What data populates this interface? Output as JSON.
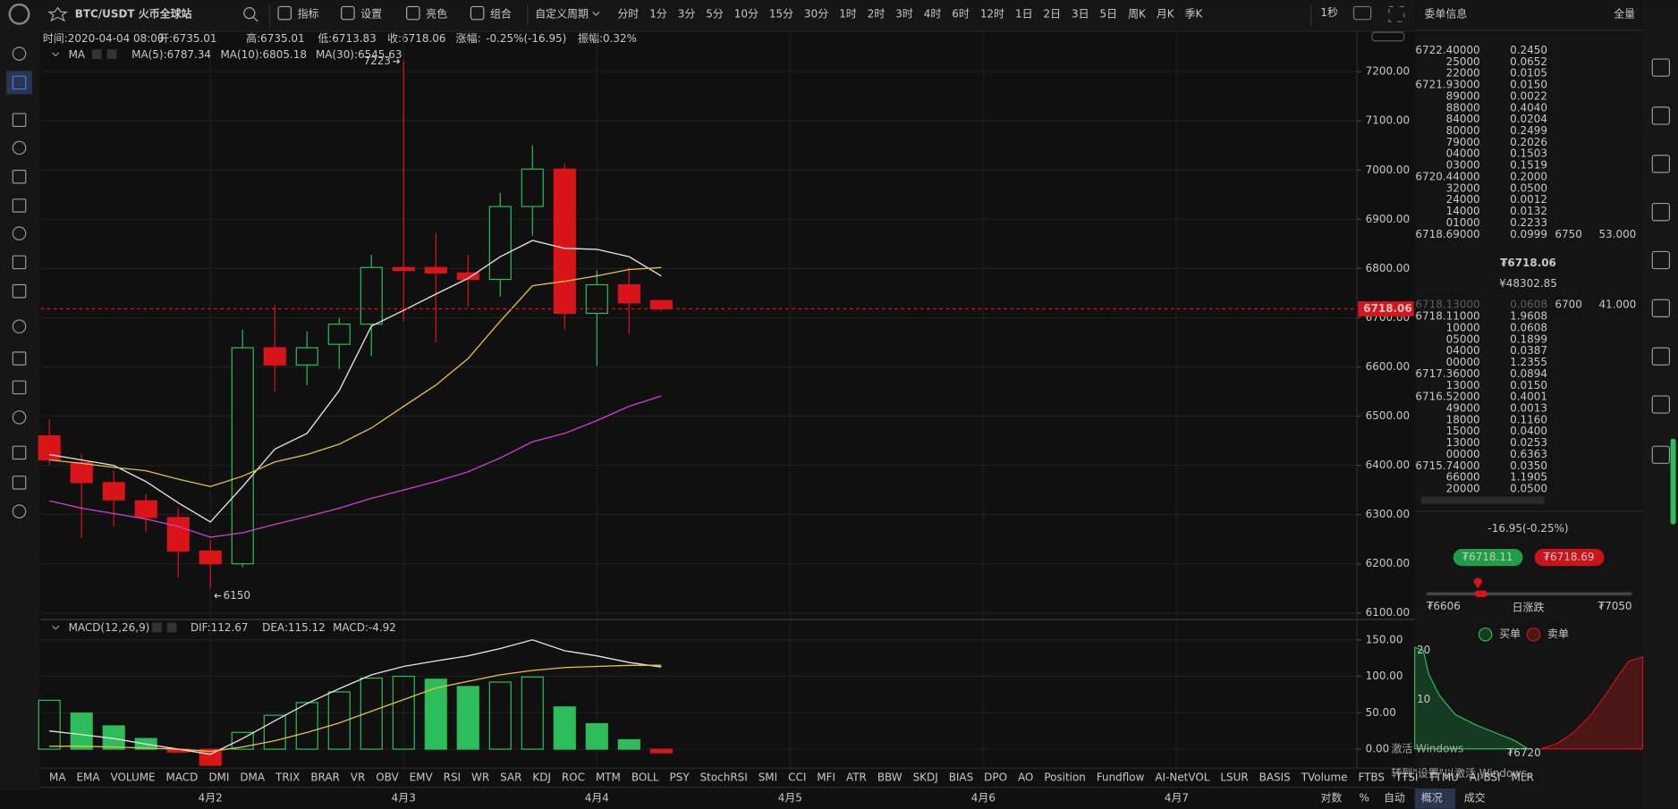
{
  "toolbar": {
    "symbol": "BTC/USDT 火币全球站",
    "tools": [
      "指标",
      "设置",
      "亮色",
      "组合"
    ],
    "custom_period": "自定义周期",
    "periods": [
      "分时",
      "1分",
      "3分",
      "5分",
      "10分",
      "15分",
      "30分",
      "1时",
      "2时",
      "3时",
      "4时",
      "6时",
      "12时",
      "1日",
      "2日",
      "3日",
      "5日",
      "周K",
      "月K",
      "季K"
    ],
    "active_period": 10,
    "refresh": "1秒"
  },
  "info_bar": {
    "time": "时间:2020-04-04 08:00",
    "open": "开:6735.01",
    "high": "高:6735.01",
    "low": "低:6713.83",
    "close": "收:6718.06",
    "change_label": "涨幅:",
    "change": "-0.25%(-16.95)",
    "amplitude": "振幅:0.32%"
  },
  "chart_data": [
    {
      "type": "candlestick",
      "legend_title": "MA",
      "open": [
        6460,
        6406,
        6365,
        6328,
        6294,
        6226,
        6200,
        6639,
        6604,
        6646,
        6687,
        6802,
        6802,
        6791,
        6778,
        6926,
        7002,
        6709,
        6767,
        6735.01
      ],
      "high": [
        6493,
        6422,
        6389,
        6341,
        6313,
        6248,
        6676,
        6726,
        6672,
        6700,
        6828,
        7223,
        6872,
        6828,
        6954,
        7050,
        7013,
        6796,
        6802,
        6735.01
      ],
      "low": [
        6400,
        6252,
        6276,
        6265,
        6172,
        6150,
        6193,
        6550,
        6563,
        6596,
        6622,
        6693,
        6650,
        6722,
        6743,
        6867,
        6676,
        6602,
        6667,
        6713.83
      ],
      "close": [
        6411,
        6365,
        6330,
        6294,
        6226,
        6200,
        6639,
        6604,
        6639,
        6687,
        6802,
        6796,
        6791,
        6778,
        6926,
        7002,
        6709,
        6767,
        6730,
        6718.06
      ],
      "up_color": "#2dbd5a",
      "down_color": "#d9151a",
      "series": [
        {
          "name": "MA(5):6787.34",
          "color": "#e6e6e6",
          "values": [
            6422,
            6411,
            6400,
            6367,
            6324,
            6285,
            6357,
            6433,
            6465,
            6552,
            6683,
            6715,
            6748,
            6780,
            6824,
            6857,
            6841,
            6839,
            6824,
            6785
          ]
        },
        {
          "name": "MA(10):6805.18",
          "color": "#e3c14e",
          "values": [
            6411,
            6404,
            6396,
            6389,
            6372,
            6357,
            6378,
            6407,
            6422,
            6443,
            6476,
            6520,
            6563,
            6617,
            6693,
            6765,
            6774,
            6785,
            6798,
            6802
          ]
        },
        {
          "name": "MA(30):6545.63",
          "color": "#d23fd2",
          "values": [
            6328,
            6313,
            6302,
            6291,
            6276,
            6254,
            6263,
            6280,
            6296,
            6313,
            6333,
            6350,
            6367,
            6387,
            6415,
            6448,
            6465,
            6491,
            6520,
            6541
          ]
        }
      ],
      "last_price": 6718.06,
      "ylim": [
        6089,
        7280
      ],
      "yticks": [
        {
          "value": 7200,
          "label": "7200.00"
        },
        {
          "value": 7100,
          "label": "7100.00"
        },
        {
          "value": 7000,
          "label": "7000.00"
        },
        {
          "value": 6900,
          "label": "6900.00"
        },
        {
          "value": 6800,
          "label": "6800.00"
        },
        {
          "value": 6700,
          "label": "6700.00"
        },
        {
          "value": 6600,
          "label": "6600.00"
        },
        {
          "value": 6500,
          "label": "6500.00"
        },
        {
          "value": 6400,
          "label": "6400.00"
        },
        {
          "value": 6300,
          "label": "6300.00"
        },
        {
          "value": 6200,
          "label": "6200.00"
        },
        {
          "value": 6100,
          "label": "6100.00"
        }
      ],
      "xlim": [
        -0.27,
        40.6
      ],
      "xticks": [
        {
          "value": 5,
          "label": "4月2"
        },
        {
          "value": 11,
          "label": "4月3"
        },
        {
          "value": 17,
          "label": "4月4"
        },
        {
          "value": 23,
          "label": "4月5"
        },
        {
          "value": 29,
          "label": "4月6"
        },
        {
          "value": 35,
          "label": "4月7"
        }
      ],
      "grid": true
    },
    {
      "type": "macd",
      "title": "MACD(12,26,9)",
      "series": [
        {
          "name": "DIF:112.67",
          "color": "#e6e6e6",
          "values": [
            25,
            20,
            14.6,
            7,
            0,
            -7,
            14.6,
            39,
            62.6,
            83,
            102,
            113.5,
            121,
            128,
            138,
            150,
            135,
            128,
            119,
            112.67
          ]
        },
        {
          "name": "DEA:115.12",
          "color": "#e3c14e",
          "values": [
            4,
            4,
            3,
            1.5,
            0,
            -3,
            3,
            11.6,
            23,
            36,
            52,
            68,
            84,
            93,
            102,
            108,
            112,
            113.5,
            115,
            115.12
          ]
        },
        {
          "name": "MACD:-4.92",
          "type": "bar",
          "color": "#d9151a",
          "up_color": "#2dbd5a",
          "values": [
            67,
            49.5,
            32,
            14.6,
            -4,
            -22,
            23,
            46.6,
            64,
            78.6,
            97.5,
            100,
            96,
            86,
            92,
            99,
            58,
            35,
            13,
            -4.92
          ]
        }
      ],
      "ylim": [
        -26,
        175
      ],
      "yticks": [
        {
          "value": 150,
          "label": "150.00"
        },
        {
          "value": 100,
          "label": "100.00"
        },
        {
          "value": 50,
          "label": "50.00"
        },
        {
          "value": 0,
          "label": "0.00"
        }
      ],
      "grid": true
    }
  ],
  "indicators": [
    "MA",
    "EMA",
    "VOLUME",
    "MACD",
    "DMI",
    "DMA",
    "TRIX",
    "BRAR",
    "VR",
    "OBV",
    "EMV",
    "RSI",
    "WR",
    "SAR",
    "KDJ",
    "ROC",
    "MTM",
    "BOLL",
    "PSY",
    "StochRSI",
    "SMI",
    "CCI",
    "MFI",
    "ATR",
    "BBW",
    "SKDJ",
    "BIAS",
    "DPO",
    "AO",
    "Position",
    "Fundflow",
    "AI-NetVOL",
    "LSUR",
    "BASIS",
    "TVolume",
    "FTBS",
    "TTSI",
    "TTMU",
    "AI-BSI",
    "MLR"
  ],
  "active_indicator": 3,
  "scale_options": [
    "对数",
    "%",
    "自动"
  ],
  "order_book": {
    "title": "委单信息",
    "full": "全量",
    "asks": [
      [
        "6722.40000",
        "0.2450"
      ],
      [
        "25000",
        "0.0652"
      ],
      [
        "22000",
        "0.0105"
      ],
      [
        "6721.93000",
        "0.0150"
      ],
      [
        "89000",
        "0.0022"
      ],
      [
        "88000",
        "0.4040"
      ],
      [
        "84000",
        "0.0204"
      ],
      [
        "80000",
        "0.2499"
      ],
      [
        "79000",
        "0.2026"
      ],
      [
        "04000",
        "0.1503"
      ],
      [
        "03000",
        "0.1519"
      ],
      [
        "6720.44000",
        "0.2000"
      ],
      [
        "32000",
        "0.0500"
      ],
      [
        "24000",
        "0.0012"
      ],
      [
        "14000",
        "0.0132"
      ],
      [
        "01000",
        "0.2233"
      ],
      [
        "6718.69000",
        "0.0999"
      ]
    ],
    "ask_extra": [
      "6750",
      "53.000"
    ],
    "mid_price": "₮6718.06",
    "mid_cny": "¥48302.85",
    "bids": [
      [
        "6718.13000",
        "0.0608"
      ],
      [
        "6718.11000",
        "1.9608"
      ],
      [
        "10000",
        "0.0608"
      ],
      [
        "05000",
        "0.1899"
      ],
      [
        "04000",
        "0.0387"
      ],
      [
        "00000",
        "1.2355"
      ],
      [
        "6717.36000",
        "0.0894"
      ],
      [
        "13000",
        "0.0150"
      ],
      [
        "6716.52000",
        "0.4001"
      ],
      [
        "49000",
        "0.0013"
      ],
      [
        "18000",
        "0.1160"
      ],
      [
        "15000",
        "0.0400"
      ],
      [
        "13000",
        "0.0253"
      ],
      [
        "00000",
        "0.6363"
      ],
      [
        "6715.74000",
        "0.0350"
      ],
      [
        "66000",
        "1.1905"
      ],
      [
        "20000",
        "0.0500"
      ]
    ],
    "bid_extra": [
      "6700",
      "41.000"
    ]
  },
  "summary": {
    "change": "-16.95(-0.25%)",
    "buy": "₮6718.11",
    "sell": "₮6718.69",
    "low": "₮6606",
    "range_label": "日涨跌",
    "high": "₮7050",
    "legend": [
      "买单",
      "卖单"
    ],
    "depth_labels": [
      "20",
      "10"
    ],
    "depth_price": "₮6720"
  },
  "tabs": [
    "概况",
    "成交"
  ],
  "watermark": {
    "line1": "激活 Windows",
    "line2": "转到\"设置\"以激活 Windows。"
  }
}
